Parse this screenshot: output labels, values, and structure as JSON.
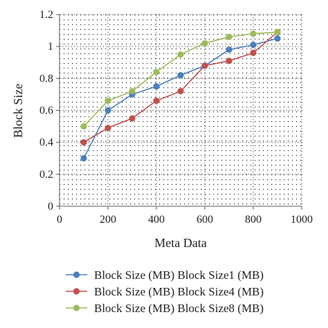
{
  "chart_data": {
    "type": "line",
    "xlabel": "Meta Data",
    "ylabel": "Block Size",
    "xlim": [
      0,
      1000
    ],
    "ylim": [
      0,
      1.2
    ],
    "xticks": [
      0,
      200,
      400,
      600,
      800,
      1000
    ],
    "yticks": [
      0,
      0.2,
      0.4,
      0.6,
      0.8,
      1,
      1.2
    ],
    "xtick_labels": [
      "0",
      "200",
      "400",
      "600",
      "800",
      "1000"
    ],
    "ytick_labels": [
      "0",
      "0.2",
      "0.4",
      "0.6",
      "0.8",
      "1",
      "1.2"
    ],
    "grid": "dotted",
    "legend_position": "bottom",
    "x": [
      100,
      200,
      300,
      400,
      500,
      600,
      700,
      800,
      900
    ],
    "series": [
      {
        "name": "Block Size (MB) Block Size1 (MB)",
        "color": "#4a7ec0",
        "values": [
          0.3,
          0.6,
          0.7,
          0.75,
          0.82,
          0.88,
          0.98,
          1.01,
          1.05
        ]
      },
      {
        "name": "Block Size (MB) Block Size4 (MB)",
        "color": "#c0504d",
        "values": [
          0.4,
          0.49,
          0.55,
          0.66,
          0.72,
          0.88,
          0.91,
          0.96,
          1.09
        ]
      },
      {
        "name": "Block Size (MB) Block Size8 (MB)",
        "color": "#9bbb59",
        "values": [
          0.5,
          0.66,
          0.72,
          0.84,
          0.95,
          1.02,
          1.06,
          1.08,
          1.09
        ]
      }
    ]
  }
}
